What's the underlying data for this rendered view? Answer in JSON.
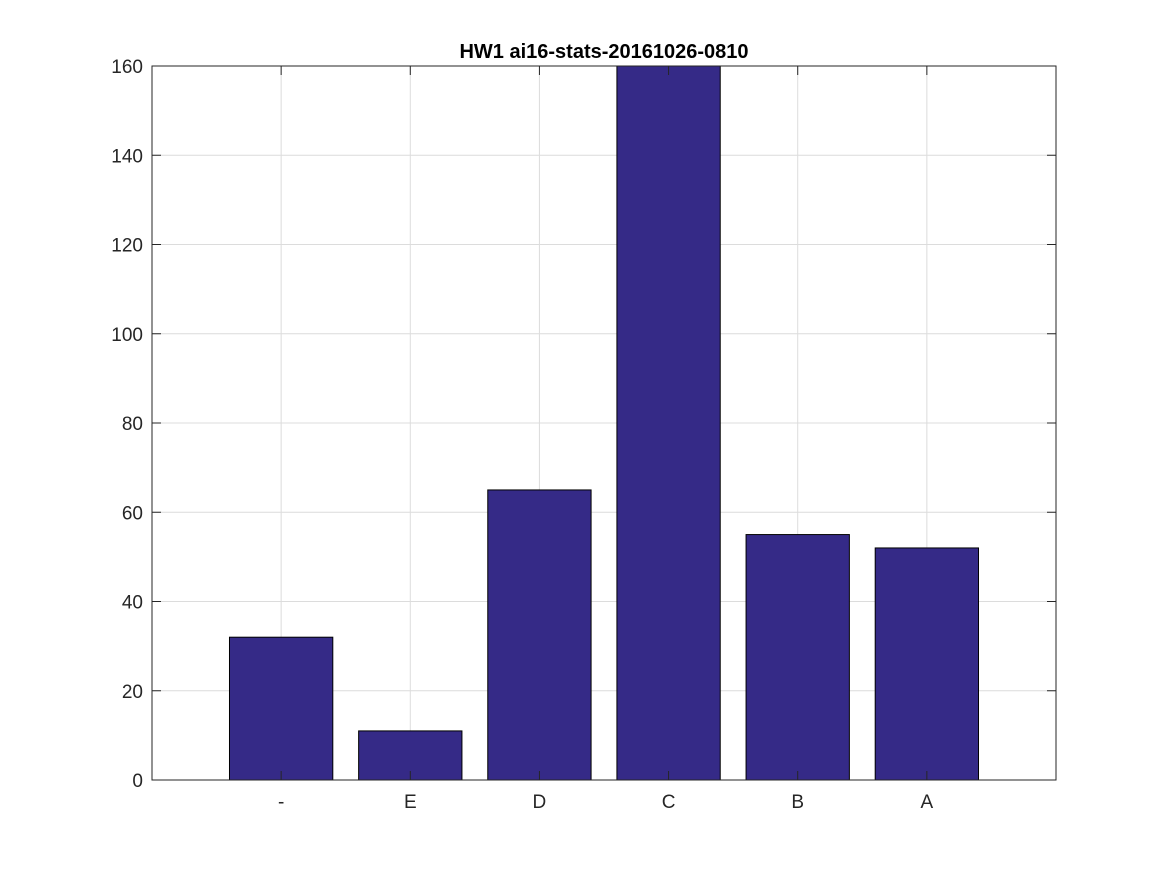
{
  "chart_data": {
    "type": "bar",
    "title": "HW1 ai16-stats-20161026-0810",
    "xlabel": "",
    "ylabel": "",
    "categories": [
      "-",
      "E",
      "D",
      "C",
      "B",
      "A"
    ],
    "values": [
      32,
      11,
      65,
      160,
      55,
      52
    ],
    "ylim": [
      0,
      160
    ],
    "yticks": [
      0,
      20,
      40,
      60,
      80,
      100,
      120,
      140,
      160
    ],
    "grid": true,
    "legend": "none",
    "colors": {
      "bar_fill": "#352a87",
      "bar_edge": "#000000",
      "grid": "#dcdcdc",
      "axis": "#262626"
    }
  }
}
